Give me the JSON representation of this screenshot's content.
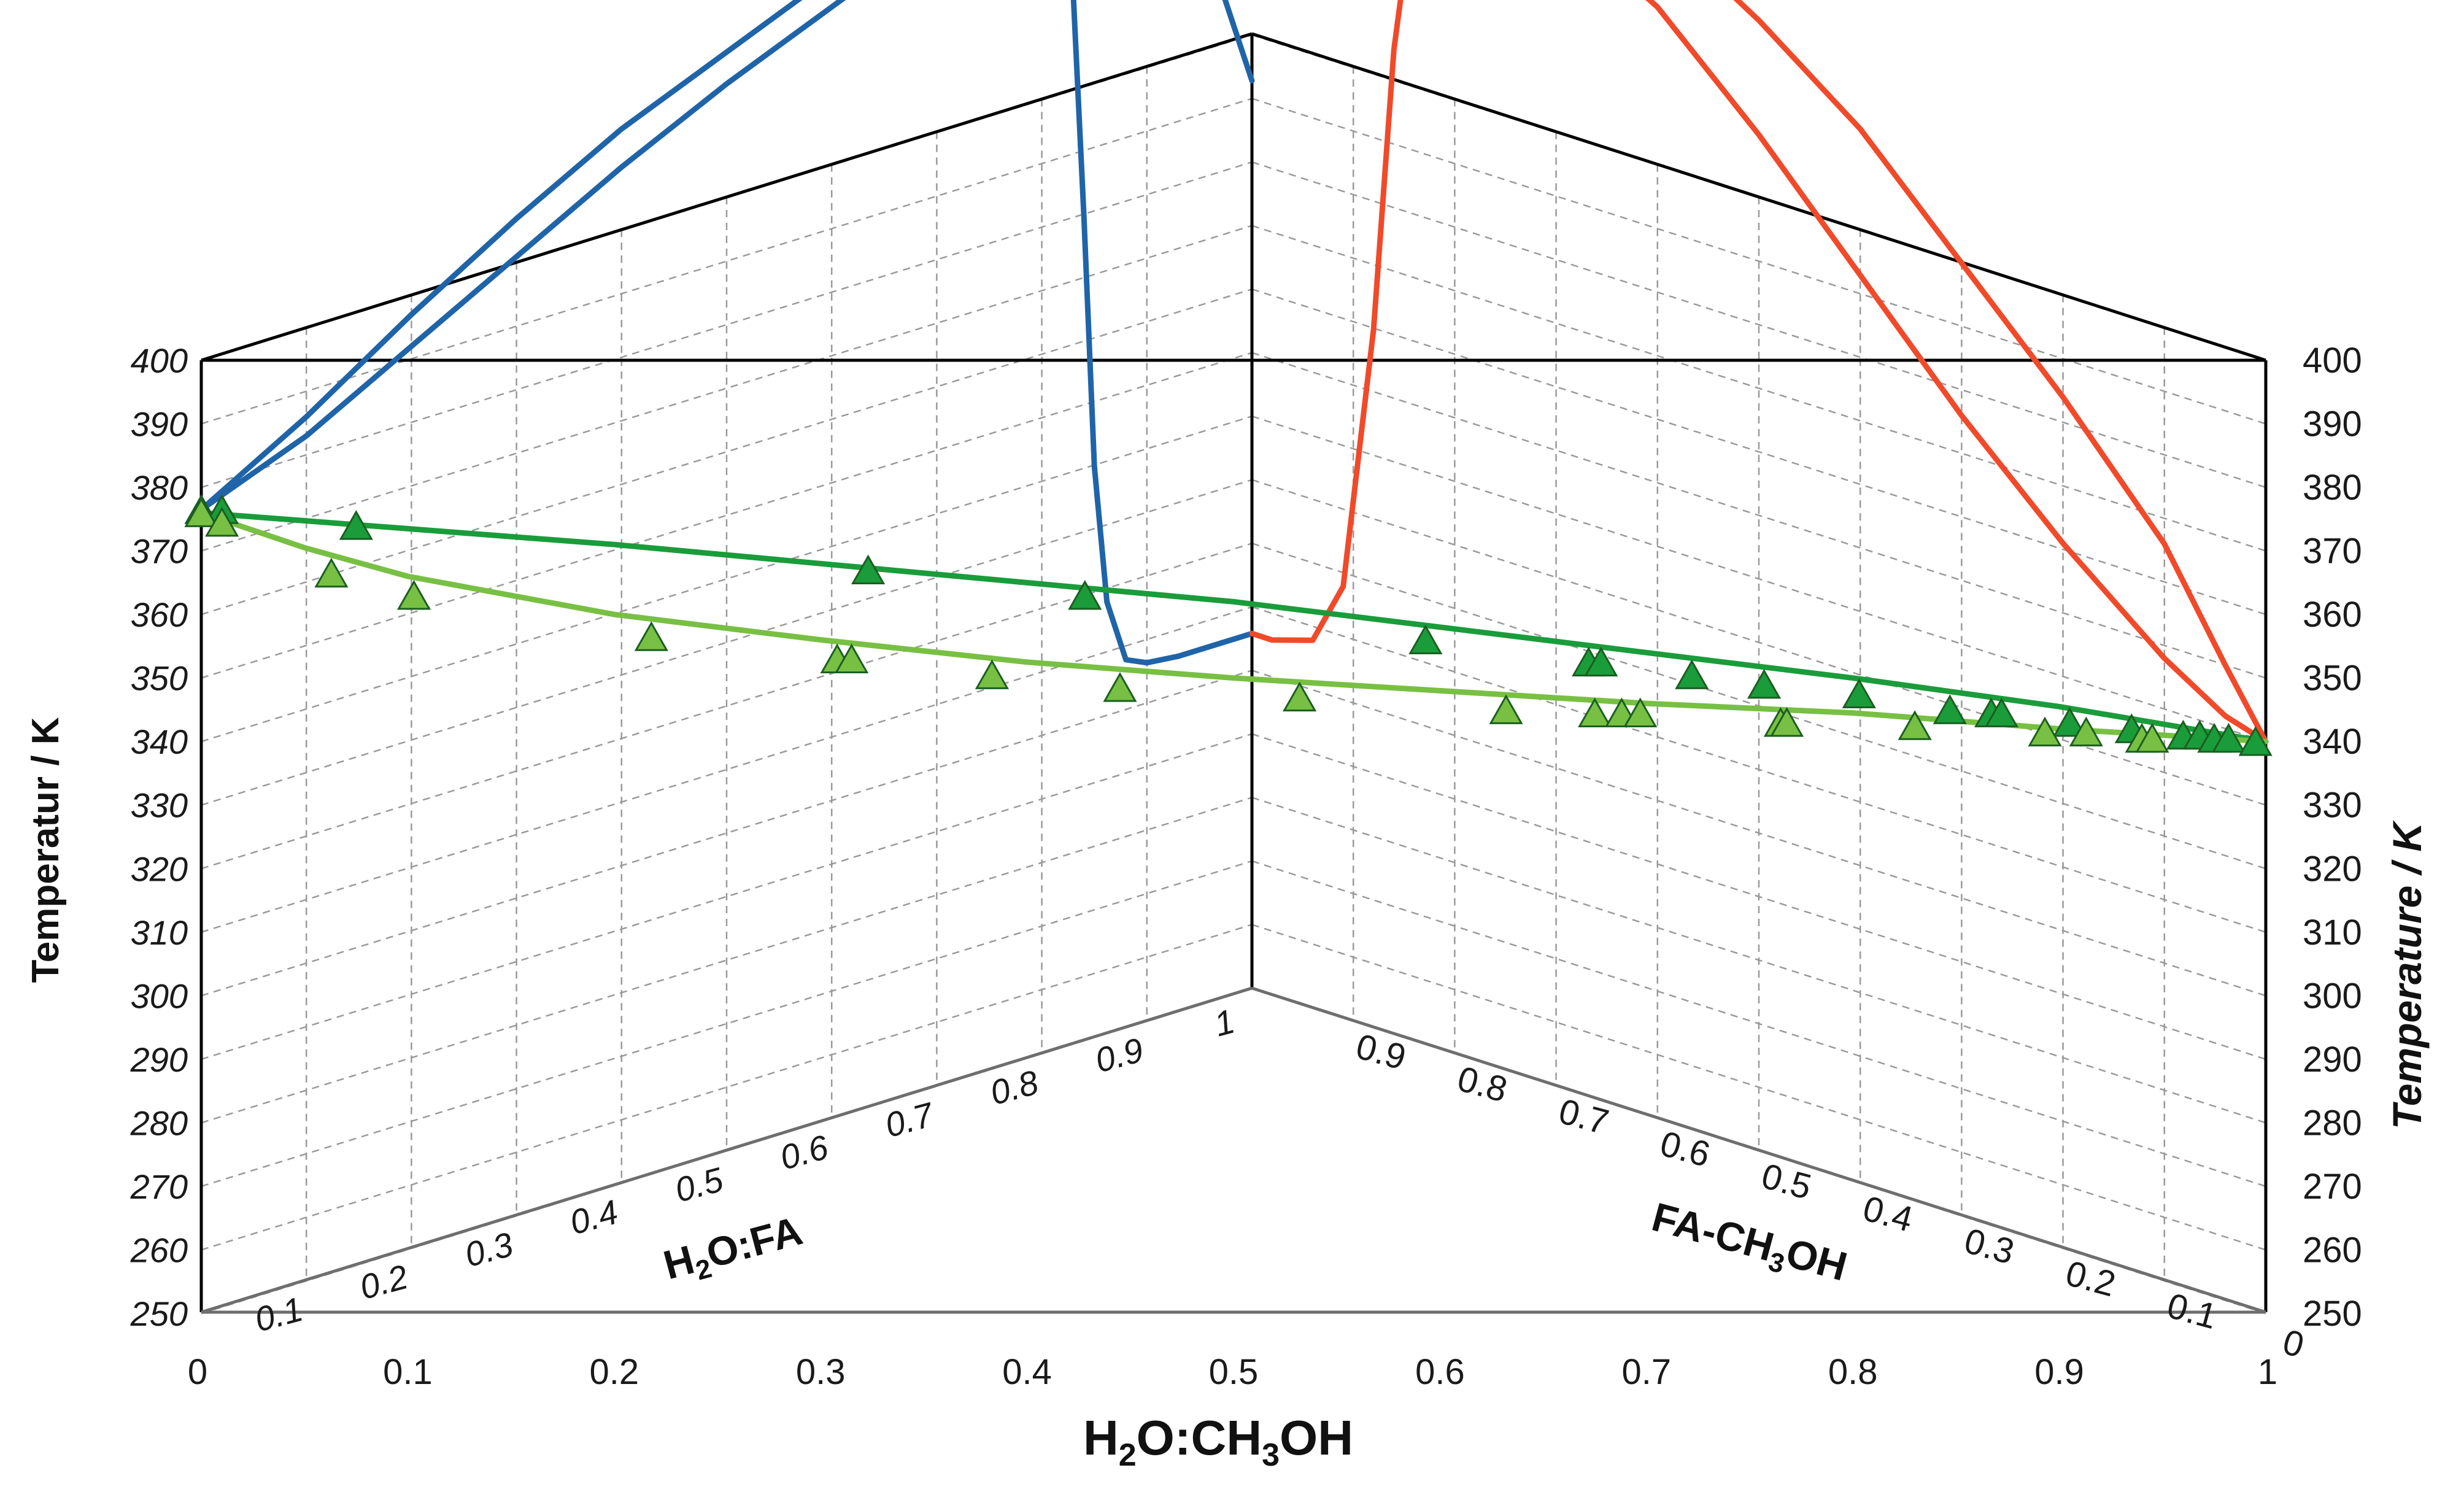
{
  "chart_data": {
    "type": "3d-phase-diagram",
    "projection": "two vertical walls (left: H2O:FA-H2O:CH3OH wall, right: FA-CH3OH wall) over a triangular floor",
    "temperature_axis": {
      "left_label": "Temperatur / K",
      "right_label": "Temperature / K",
      "ticks": [
        "250",
        "260",
        "270",
        "280",
        "290",
        "300",
        "310",
        "320",
        "330",
        "340",
        "350",
        "360",
        "370",
        "380",
        "390",
        "400"
      ],
      "range": [
        250,
        400
      ]
    },
    "front_axis": {
      "label_prefix": "H",
      "label_sub1": "2",
      "label_mid": "O:CH",
      "label_sub2": "3",
      "label_suffix": "OH",
      "ticks": [
        "0",
        "0.1",
        "0.2",
        "0.3",
        "0.4",
        "0.5",
        "0.6",
        "0.7",
        "0.8",
        "0.9",
        "1"
      ],
      "range": [
        0,
        1
      ]
    },
    "left_floor_axis": {
      "label_prefix": "H",
      "label_sub": "2",
      "label_suffix": "O:FA",
      "ticks": [
        "0.1",
        "0.2",
        "0.3",
        "0.4",
        "0.5",
        "0.6",
        "0.7",
        "0.8",
        "0.9",
        "1"
      ]
    },
    "right_floor_axis": {
      "label_prefix": "FA-CH",
      "label_sub": "3",
      "label_suffix": "OH",
      "ticks": [
        "0.9",
        "0.8",
        "0.7",
        "0.6",
        "0.5",
        "0.4",
        "0.3",
        "0.2",
        "0.1",
        "0"
      ]
    },
    "corner_ticks": {
      "left_zero": "0",
      "right_one": "1"
    },
    "series": [
      {
        "name": "H2O:FA azeotrope envelope (upper)",
        "wall": "left",
        "color": "#1f64a8",
        "points": [
          [
            0.0,
            376.5
          ],
          [
            0.1,
            383
          ],
          [
            0.2,
            392
          ],
          [
            0.3,
            401
          ],
          [
            0.4,
            410
          ],
          [
            0.5,
            418
          ],
          [
            0.6,
            425
          ],
          [
            0.7,
            432
          ],
          [
            0.78,
            437
          ],
          [
            0.8,
            437
          ],
          [
            0.815,
            434
          ],
          [
            0.83,
            415
          ],
          [
            0.84,
            380
          ],
          [
            0.85,
            340
          ],
          [
            0.862,
            318
          ],
          [
            0.88,
            308
          ],
          [
            0.9,
            306.5
          ],
          [
            0.93,
            306
          ],
          [
            1.0,
            306
          ]
        ]
      },
      {
        "name": "H2O:FA azeotrope envelope (lower)",
        "wall": "left",
        "color": "#1f64a8",
        "points": [
          [
            0.0,
            376.5
          ],
          [
            0.1,
            386
          ],
          [
            0.2,
            397
          ],
          [
            0.3,
            407
          ],
          [
            0.4,
            416
          ],
          [
            0.5,
            423
          ],
          [
            0.6,
            430
          ],
          [
            0.7,
            437
          ],
          [
            0.8,
            442
          ],
          [
            0.88,
            446
          ],
          [
            0.9,
            447
          ],
          [
            0.915,
            445
          ],
          [
            0.93,
            436
          ],
          [
            0.96,
            415
          ],
          [
            1.0,
            393
          ]
        ]
      },
      {
        "name": "FA-CH3OH envelope (vapour)",
        "wall": "right",
        "color": "#f04a2a",
        "points": [
          [
            0.0,
            306
          ],
          [
            0.02,
            306
          ],
          [
            0.06,
            308
          ],
          [
            0.09,
            318
          ],
          [
            0.12,
            360
          ],
          [
            0.14,
            405
          ],
          [
            0.16,
            430
          ],
          [
            0.18,
            436
          ],
          [
            0.22,
            437
          ],
          [
            0.3,
            434
          ],
          [
            0.4,
            425
          ],
          [
            0.5,
            410
          ],
          [
            0.6,
            393
          ],
          [
            0.7,
            376
          ],
          [
            0.8,
            361
          ],
          [
            0.9,
            348
          ],
          [
            0.96,
            342
          ],
          [
            1.0,
            340
          ]
        ]
      },
      {
        "name": "FA-CH3OH envelope (liquid)",
        "wall": "right",
        "color": "#f04a2a",
        "points": [
          [
            0.0,
            440
          ],
          [
            0.02,
            447
          ],
          [
            0.06,
            448
          ],
          [
            0.12,
            448
          ],
          [
            0.2,
            447
          ],
          [
            0.3,
            444
          ],
          [
            0.4,
            438
          ],
          [
            0.5,
            428
          ],
          [
            0.6,
            416
          ],
          [
            0.7,
            400
          ],
          [
            0.8,
            384
          ],
          [
            0.9,
            366
          ],
          [
            0.96,
            350
          ],
          [
            1.0,
            340
          ]
        ]
      },
      {
        "name": "H2O:CH3OH bubble line (dark green)",
        "wall": "front",
        "color": "#1a9c3a",
        "points": [
          [
            0.0,
            376
          ],
          [
            0.1,
            373.5
          ],
          [
            0.2,
            371
          ],
          [
            0.3,
            368
          ],
          [
            0.4,
            365
          ],
          [
            0.5,
            362
          ],
          [
            0.6,
            358
          ],
          [
            0.7,
            354
          ],
          [
            0.8,
            350
          ],
          [
            0.9,
            345.5
          ],
          [
            1.0,
            340
          ]
        ]
      },
      {
        "name": "H2O:CH3OH dew line (light green)",
        "wall": "front",
        "color": "#78c043",
        "points": [
          [
            0.0,
            376
          ],
          [
            0.05,
            370.5
          ],
          [
            0.1,
            366
          ],
          [
            0.2,
            360
          ],
          [
            0.3,
            356
          ],
          [
            0.4,
            352.5
          ],
          [
            0.5,
            350
          ],
          [
            0.6,
            348
          ],
          [
            0.7,
            346
          ],
          [
            0.8,
            344.5
          ],
          [
            0.9,
            342
          ],
          [
            1.0,
            340
          ]
        ]
      },
      {
        "name": "Measured points (dark green triangles)",
        "marker": "triangle",
        "color": "#1a9c3a",
        "points": [
          [
            0.0,
            376
          ],
          [
            0.01,
            376
          ],
          [
            0.075,
            373.5
          ],
          [
            0.323,
            366.5
          ],
          [
            0.428,
            362.5
          ],
          [
            0.593,
            355.5
          ],
          [
            0.672,
            352
          ],
          [
            0.678,
            352
          ],
          [
            0.722,
            350
          ],
          [
            0.757,
            348.5
          ],
          [
            0.803,
            347
          ],
          [
            0.847,
            344.5
          ],
          [
            0.867,
            344
          ],
          [
            0.872,
            344
          ],
          [
            0.905,
            342.5
          ],
          [
            0.935,
            341.5
          ],
          [
            0.96,
            340.5
          ],
          [
            0.968,
            340.5
          ],
          [
            0.975,
            340
          ],
          [
            0.982,
            340
          ],
          [
            0.995,
            339.5
          ]
        ]
      },
      {
        "name": "Measured points (light green triangles)",
        "marker": "triangle",
        "color": "#78c043",
        "points": [
          [
            0.0,
            375.5
          ],
          [
            0.01,
            374
          ],
          [
            0.063,
            366
          ],
          [
            0.103,
            362.5
          ],
          [
            0.218,
            356
          ],
          [
            0.308,
            352.5
          ],
          [
            0.315,
            352.5
          ],
          [
            0.383,
            350
          ],
          [
            0.445,
            348
          ],
          [
            0.532,
            346.5
          ],
          [
            0.632,
            344.5
          ],
          [
            0.675,
            344
          ],
          [
            0.688,
            344
          ],
          [
            0.697,
            344
          ],
          [
            0.765,
            342.5
          ],
          [
            0.768,
            342.5
          ],
          [
            0.83,
            342
          ],
          [
            0.893,
            341
          ],
          [
            0.913,
            341
          ],
          [
            0.94,
            340
          ],
          [
            0.945,
            340
          ]
        ]
      }
    ]
  }
}
